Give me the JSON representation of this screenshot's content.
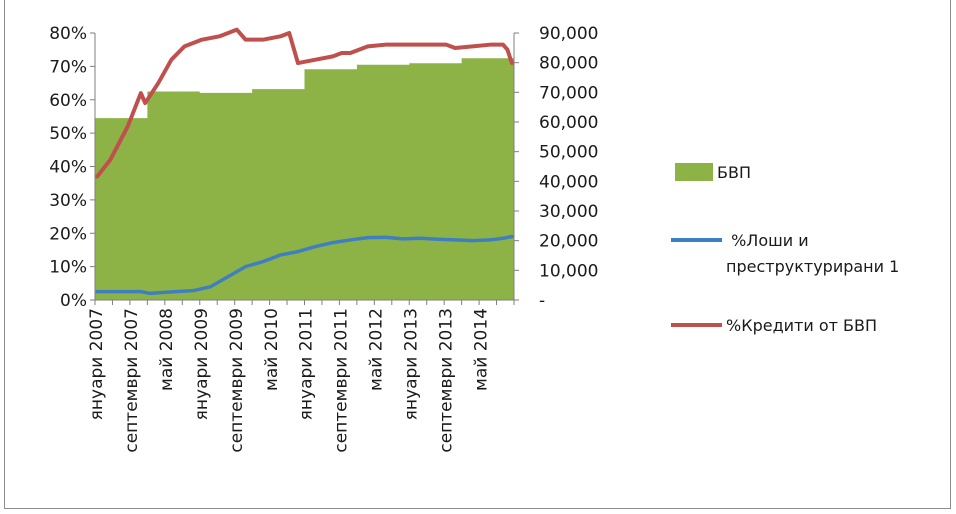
{
  "chart_data": {
    "type": "area+line",
    "title": "",
    "xlabel": "",
    "ylabel_left": "",
    "ylabel_right": "",
    "y_left": {
      "range": [
        0,
        0.8
      ],
      "ticks": [
        {
          "value": 0,
          "label": "0%"
        },
        {
          "value": 0.1,
          "label": "10%"
        },
        {
          "value": 0.2,
          "label": "20%"
        },
        {
          "value": 0.3,
          "label": "30%"
        },
        {
          "value": 0.4,
          "label": "40%"
        },
        {
          "value": 0.5,
          "label": "50%"
        },
        {
          "value": 0.6,
          "label": "60%"
        },
        {
          "value": 0.7,
          "label": "70%"
        },
        {
          "value": 0.8,
          "label": "80%"
        }
      ]
    },
    "y_right": {
      "range": [
        0,
        90000
      ],
      "ticks": [
        {
          "value": 0,
          "label": "-"
        },
        {
          "value": 10000,
          "label": "10,000"
        },
        {
          "value": 20000,
          "label": "20,000"
        },
        {
          "value": 30000,
          "label": "30,000"
        },
        {
          "value": 40000,
          "label": "40,000"
        },
        {
          "value": 50000,
          "label": "50,000"
        },
        {
          "value": 60000,
          "label": "60,000"
        },
        {
          "value": 70000,
          "label": "70,000"
        },
        {
          "value": 80000,
          "label": "80,000"
        },
        {
          "value": 90000,
          "label": "90,000"
        }
      ]
    },
    "x_ticks": [
      {
        "index": 0,
        "label": "януари 2007"
      },
      {
        "index": 8,
        "label": "септември 2007"
      },
      {
        "index": 16,
        "label": "май 2008"
      },
      {
        "index": 24,
        "label": "януари 2009"
      },
      {
        "index": 32,
        "label": "септември 2009"
      },
      {
        "index": 40,
        "label": "май 2010"
      },
      {
        "index": 48,
        "label": "януари 2011"
      },
      {
        "index": 56,
        "label": "септември 2011"
      },
      {
        "index": 64,
        "label": "май 2012"
      },
      {
        "index": 72,
        "label": "януари 2013"
      },
      {
        "index": 80,
        "label": "септември 2013"
      },
      {
        "index": 88,
        "label": "май 2014"
      }
    ],
    "n_points": 96,
    "series": [
      {
        "name": "БВП",
        "kind": "area",
        "axis": "right",
        "color": "#8db346",
        "steps": [
          {
            "from": 0,
            "to": 11,
            "value": 61500
          },
          {
            "from": 12,
            "to": 23,
            "value": 70500
          },
          {
            "from": 24,
            "to": 35,
            "value": 70000
          },
          {
            "from": 36,
            "to": 47,
            "value": 71300
          },
          {
            "from": 48,
            "to": 59,
            "value": 78000
          },
          {
            "from": 60,
            "to": 71,
            "value": 79500
          },
          {
            "from": 72,
            "to": 83,
            "value": 80000
          },
          {
            "from": 84,
            "to": 95,
            "value": 81700
          }
        ]
      },
      {
        "name": "%Лоши и преструктурирани 1",
        "kind": "line",
        "axis": "left",
        "color": "#3f7fc1",
        "points": [
          [
            0,
            0.025
          ],
          [
            10,
            0.025
          ],
          [
            12,
            0.02
          ],
          [
            18,
            0.025
          ],
          [
            22,
            0.028
          ],
          [
            26,
            0.04
          ],
          [
            30,
            0.07
          ],
          [
            34,
            0.1
          ],
          [
            38,
            0.115
          ],
          [
            42,
            0.135
          ],
          [
            46,
            0.145
          ],
          [
            50,
            0.16
          ],
          [
            54,
            0.172
          ],
          [
            58,
            0.18
          ],
          [
            62,
            0.187
          ],
          [
            66,
            0.188
          ],
          [
            70,
            0.183
          ],
          [
            74,
            0.185
          ],
          [
            78,
            0.182
          ],
          [
            82,
            0.18
          ],
          [
            86,
            0.178
          ],
          [
            90,
            0.18
          ],
          [
            93,
            0.185
          ],
          [
            95,
            0.19
          ]
        ]
      },
      {
        "name": "%Кредити от БВП",
        "kind": "line",
        "axis": "left",
        "color": "#c0504d",
        "points": [
          [
            0,
            0.37
          ],
          [
            3,
            0.42
          ],
          [
            7,
            0.52
          ],
          [
            10,
            0.62
          ],
          [
            11,
            0.59
          ],
          [
            14,
            0.65
          ],
          [
            17,
            0.72
          ],
          [
            20,
            0.76
          ],
          [
            24,
            0.78
          ],
          [
            28,
            0.79
          ],
          [
            30,
            0.8
          ],
          [
            32,
            0.81
          ],
          [
            34,
            0.78
          ],
          [
            38,
            0.78
          ],
          [
            42,
            0.79
          ],
          [
            44,
            0.8
          ],
          [
            46,
            0.71
          ],
          [
            50,
            0.72
          ],
          [
            54,
            0.73
          ],
          [
            56,
            0.74
          ],
          [
            58,
            0.74
          ],
          [
            62,
            0.76
          ],
          [
            66,
            0.765
          ],
          [
            70,
            0.765
          ],
          [
            74,
            0.765
          ],
          [
            78,
            0.765
          ],
          [
            80,
            0.765
          ],
          [
            82,
            0.755
          ],
          [
            86,
            0.76
          ],
          [
            90,
            0.765
          ],
          [
            93,
            0.765
          ],
          [
            94,
            0.75
          ],
          [
            95,
            0.71
          ]
        ]
      }
    ],
    "legend": {
      "placement": "right",
      "entries": [
        {
          "label": "БВП",
          "color": "#8db346",
          "kind": "box"
        },
        {
          "label": " %Лоши и преструктурирани 1",
          "color": "#3f7fc1",
          "kind": "line"
        },
        {
          "label": "%Кредити от БВП",
          "color": "#c0504d",
          "kind": "line"
        }
      ]
    }
  }
}
